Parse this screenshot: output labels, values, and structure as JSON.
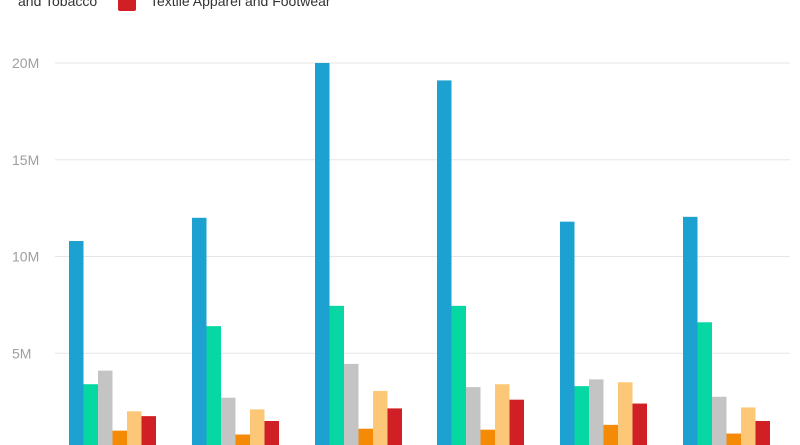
{
  "chart_data": {
    "type": "bar",
    "title": "",
    "xlabel": "",
    "ylabel": "",
    "categories": [
      "",
      "",
      "",
      "",
      "",
      ""
    ],
    "ylim": [
      0,
      20000000
    ],
    "yticks": [
      {
        "value": 5000000,
        "label": "5M"
      },
      {
        "value": 10000000,
        "label": "10M"
      },
      {
        "value": 15000000,
        "label": "15M"
      },
      {
        "value": 20000000,
        "label": "20M"
      }
    ],
    "grid": true,
    "legend_position": "top",
    "legend_visible": [
      {
        "label": "and Tobacco",
        "color": "#d11f26"
      },
      {
        "label": "Textile Apparel and Footwear",
        "color": "#d11f26"
      }
    ],
    "series": [
      {
        "color": "#1da1d1",
        "values": [
          10800000,
          12000000,
          20000000,
          19100000,
          11800000,
          12050000
        ]
      },
      {
        "color": "#07d7a2",
        "values": [
          3400000,
          6400000,
          7450000,
          7450000,
          3300000,
          6600000
        ]
      },
      {
        "color": "#c4c4c4",
        "values": [
          4100000,
          2700000,
          4450000,
          3250000,
          3650000,
          2750000
        ]
      },
      {
        "color": "#f58a07",
        "values": [
          1000000,
          800000,
          1100000,
          1050000,
          1300000,
          850000
        ]
      },
      {
        "color": "#fcc878",
        "values": [
          2000000,
          2100000,
          3050000,
          3400000,
          3500000,
          2200000
        ]
      },
      {
        "color": "#d11f26",
        "values": [
          1750000,
          1500000,
          2150000,
          2600000,
          2400000,
          1500000
        ]
      }
    ]
  }
}
